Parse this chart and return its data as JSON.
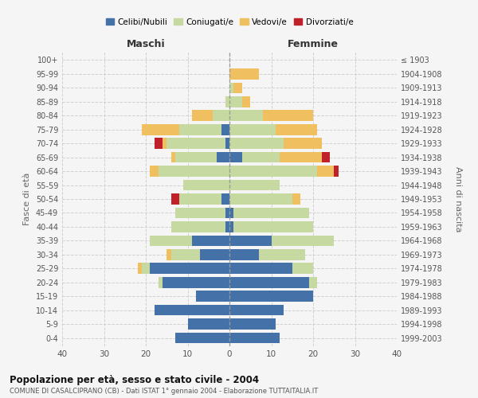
{
  "age_groups": [
    "0-4",
    "5-9",
    "10-14",
    "15-19",
    "20-24",
    "25-29",
    "30-34",
    "35-39",
    "40-44",
    "45-49",
    "50-54",
    "55-59",
    "60-64",
    "65-69",
    "70-74",
    "75-79",
    "80-84",
    "85-89",
    "90-94",
    "95-99",
    "100+"
  ],
  "birth_years": [
    "1999-2003",
    "1994-1998",
    "1989-1993",
    "1984-1988",
    "1979-1983",
    "1974-1978",
    "1969-1973",
    "1964-1968",
    "1959-1963",
    "1954-1958",
    "1949-1953",
    "1944-1948",
    "1939-1943",
    "1934-1938",
    "1929-1933",
    "1924-1928",
    "1919-1923",
    "1914-1918",
    "1909-1913",
    "1904-1908",
    "≤ 1903"
  ],
  "male": {
    "celibi": [
      13,
      10,
      18,
      8,
      16,
      19,
      7,
      9,
      1,
      1,
      2,
      0,
      0,
      3,
      1,
      2,
      0,
      0,
      0,
      0,
      0
    ],
    "coniugati": [
      0,
      0,
      0,
      0,
      1,
      2,
      7,
      10,
      13,
      12,
      10,
      11,
      17,
      10,
      14,
      10,
      4,
      1,
      0,
      0,
      0
    ],
    "vedovi": [
      0,
      0,
      0,
      0,
      0,
      1,
      1,
      0,
      0,
      0,
      0,
      0,
      2,
      1,
      1,
      9,
      5,
      0,
      0,
      0,
      0
    ],
    "divorziati": [
      0,
      0,
      0,
      0,
      0,
      0,
      0,
      0,
      0,
      0,
      2,
      0,
      0,
      0,
      2,
      0,
      0,
      0,
      0,
      0,
      0
    ]
  },
  "female": {
    "nubili": [
      12,
      11,
      13,
      20,
      19,
      15,
      7,
      10,
      1,
      1,
      0,
      0,
      0,
      3,
      0,
      0,
      0,
      0,
      0,
      0,
      0
    ],
    "coniugate": [
      0,
      0,
      0,
      0,
      2,
      5,
      11,
      15,
      19,
      18,
      15,
      12,
      21,
      9,
      13,
      11,
      8,
      3,
      1,
      0,
      0
    ],
    "vedove": [
      0,
      0,
      0,
      0,
      0,
      0,
      0,
      0,
      0,
      0,
      2,
      0,
      4,
      10,
      9,
      10,
      12,
      2,
      2,
      7,
      0
    ],
    "divorziate": [
      0,
      0,
      0,
      0,
      0,
      0,
      0,
      0,
      0,
      0,
      0,
      0,
      1,
      2,
      0,
      0,
      0,
      0,
      0,
      0,
      0
    ]
  },
  "colors": {
    "celibi": "#4472a8",
    "coniugati": "#c5d9a0",
    "vedovi": "#f0c060",
    "divorziati": "#c0202a"
  },
  "legend_labels": [
    "Celibi/Nubili",
    "Coniugati/e",
    "Vedovi/e",
    "Divorziati/e"
  ],
  "title": "Popolazione per età, sesso e stato civile - 2004",
  "subtitle": "COMUNE DI CASALCIPRANO (CB) - Dati ISTAT 1° gennaio 2004 - Elaborazione TUTTAITALIA.IT",
  "xlabel_maschi": "Maschi",
  "xlabel_femmine": "Femmine",
  "ylabel_left": "Fasce di età",
  "ylabel_right": "Anni di nascita",
  "xlim": 40,
  "bg_color": "#f5f5f5"
}
